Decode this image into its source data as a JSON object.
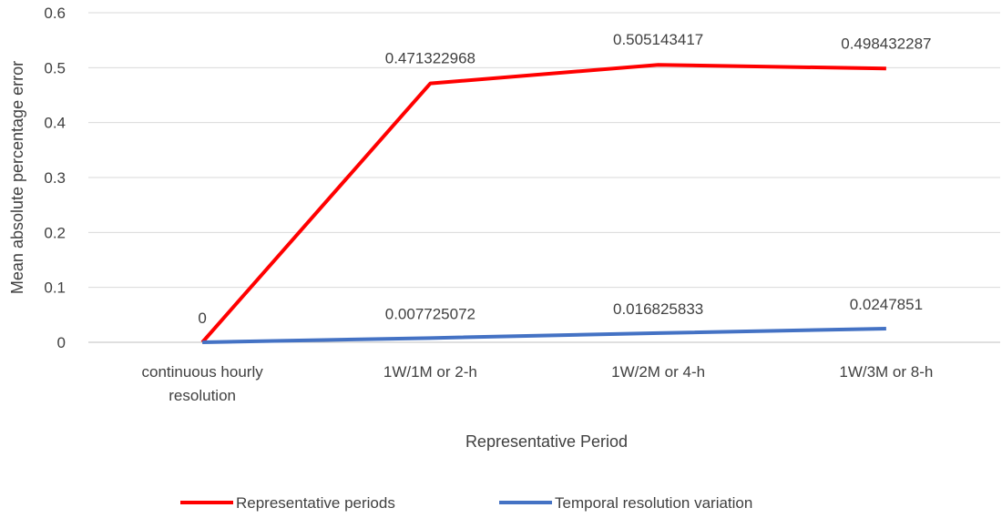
{
  "chart_data": {
    "type": "line",
    "title": "",
    "xlabel": "Representative Period",
    "ylabel": "Mean absolute percentage error",
    "categories": [
      [
        "continuous hourly",
        "resolution"
      ],
      [
        "1W/1M or 2-h"
      ],
      [
        "1W/2M or 4-h"
      ],
      [
        "1W/3M or 8-h"
      ]
    ],
    "ylim": [
      0,
      0.6
    ],
    "yticks": [
      "0",
      "0.1",
      "0.2",
      "0.3",
      "0.4",
      "0.5",
      "0.6"
    ],
    "grid": "horizontal",
    "legend_position": "bottom",
    "series": [
      {
        "name": "Representative periods",
        "color": "#ff0000",
        "values": [
          0,
          0.471322968,
          0.505143417,
          0.498432287
        ],
        "labels": [
          "",
          "0.471322968",
          "0.505143417",
          "0.498432287"
        ]
      },
      {
        "name": "Temporal resolution variation",
        "color": "#4472c4",
        "values": [
          0,
          0.007725072,
          0.016825833,
          0.0247851
        ],
        "labels": [
          "0",
          "0.007725072",
          "0.016825833",
          "0.0247851"
        ]
      }
    ]
  }
}
